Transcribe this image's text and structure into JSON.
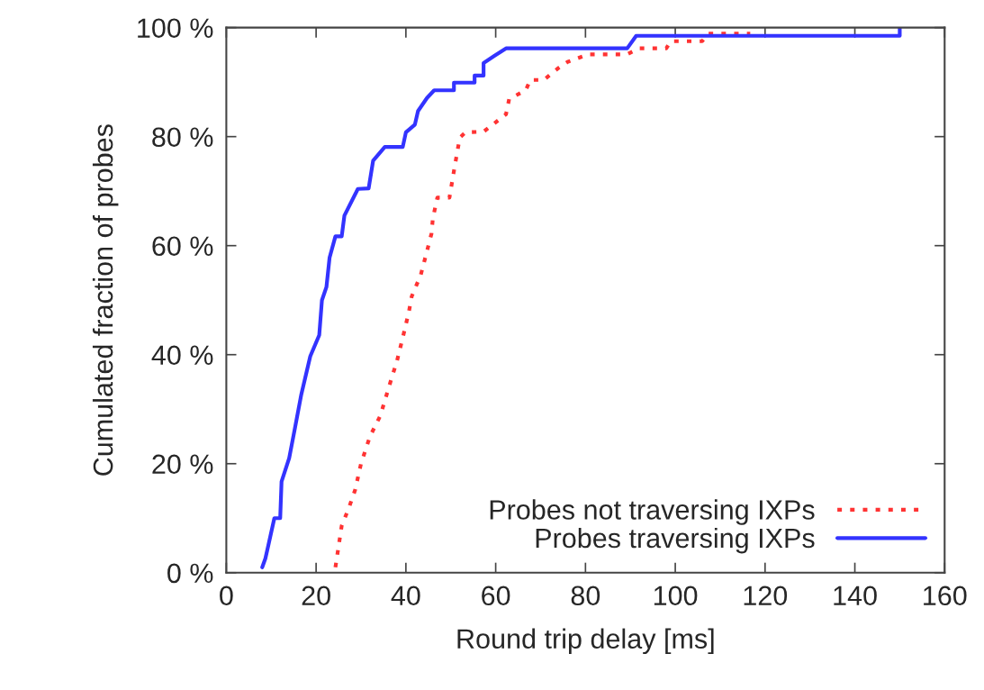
{
  "chart_data": {
    "type": "line",
    "xlabel": "Round trip delay [ms]",
    "ylabel": "Cumulated fraction of probes",
    "xlim": [
      0,
      160
    ],
    "xticks": [
      0,
      20,
      40,
      60,
      80,
      100,
      120,
      140,
      160
    ],
    "ylim": [
      0,
      100
    ],
    "yticks": [
      {
        "value": 0,
        "label": "0 %"
      },
      {
        "value": 20,
        "label": "20 %"
      },
      {
        "value": 40,
        "label": "40 %"
      },
      {
        "value": 60,
        "label": "60 %"
      },
      {
        "value": 80,
        "label": "80 %"
      },
      {
        "value": 100,
        "label": "100 %"
      }
    ],
    "grid": false,
    "legend": "bottom right",
    "marker": "none",
    "series": [
      {
        "name": "Probes not traversing IXPs",
        "color": "#ff3333",
        "line_style": "dotted",
        "x": [
          24.3,
          25.7,
          27.3,
          28.7,
          30,
          32,
          34.3,
          36.3,
          38,
          39.3,
          40.7,
          41.3,
          43.3,
          44.7,
          45.7,
          46,
          47,
          49.7,
          50.7,
          52,
          53.3,
          57.3,
          62.3,
          63,
          66.7,
          67.7,
          70.7,
          74,
          76,
          80.7,
          89.3,
          92,
          98,
          99,
          106,
          107.3,
          116.7
        ],
        "values": [
          1,
          8.6,
          11.9,
          15.2,
          20,
          25,
          28.8,
          34.3,
          38.8,
          43.1,
          48,
          50.7,
          54.6,
          59,
          62.2,
          65,
          68.8,
          68.8,
          73.7,
          79.8,
          80.8,
          80.9,
          84.1,
          86.9,
          88.5,
          90.4,
          90.4,
          92.6,
          93.7,
          95.1,
          95.1,
          96.2,
          96.2,
          97.5,
          97.5,
          98.9,
          98.9
        ]
      },
      {
        "name": "Probes traversing IXPs",
        "color": "#3333ff",
        "line_style": "solid",
        "x": [
          8,
          8.7,
          9.3,
          10.7,
          12,
          12.3,
          14,
          15.3,
          16.7,
          18.7,
          20.7,
          21.3,
          22.3,
          23,
          24.3,
          25.7,
          26.3,
          29.3,
          31.7,
          32.7,
          35.3,
          39.3,
          40,
          42,
          42.7,
          44.7,
          46.3,
          50.7,
          50.7,
          55.3,
          55.3,
          57.3,
          57.3,
          59.7,
          62.3,
          89.3,
          91.3,
          150,
          150
        ],
        "values": [
          1,
          2.6,
          4.8,
          10,
          10,
          16.7,
          21,
          26.6,
          32.7,
          39.7,
          43.6,
          50,
          52.4,
          57.8,
          61.7,
          61.7,
          65.5,
          70.4,
          70.5,
          75.6,
          78.1,
          78.1,
          80.8,
          82.2,
          84.7,
          87.1,
          88.5,
          88.5,
          89.9,
          89.9,
          91.2,
          91.2,
          93.5,
          94.8,
          96.2,
          96.2,
          98.5,
          98.5,
          100
        ]
      }
    ]
  }
}
